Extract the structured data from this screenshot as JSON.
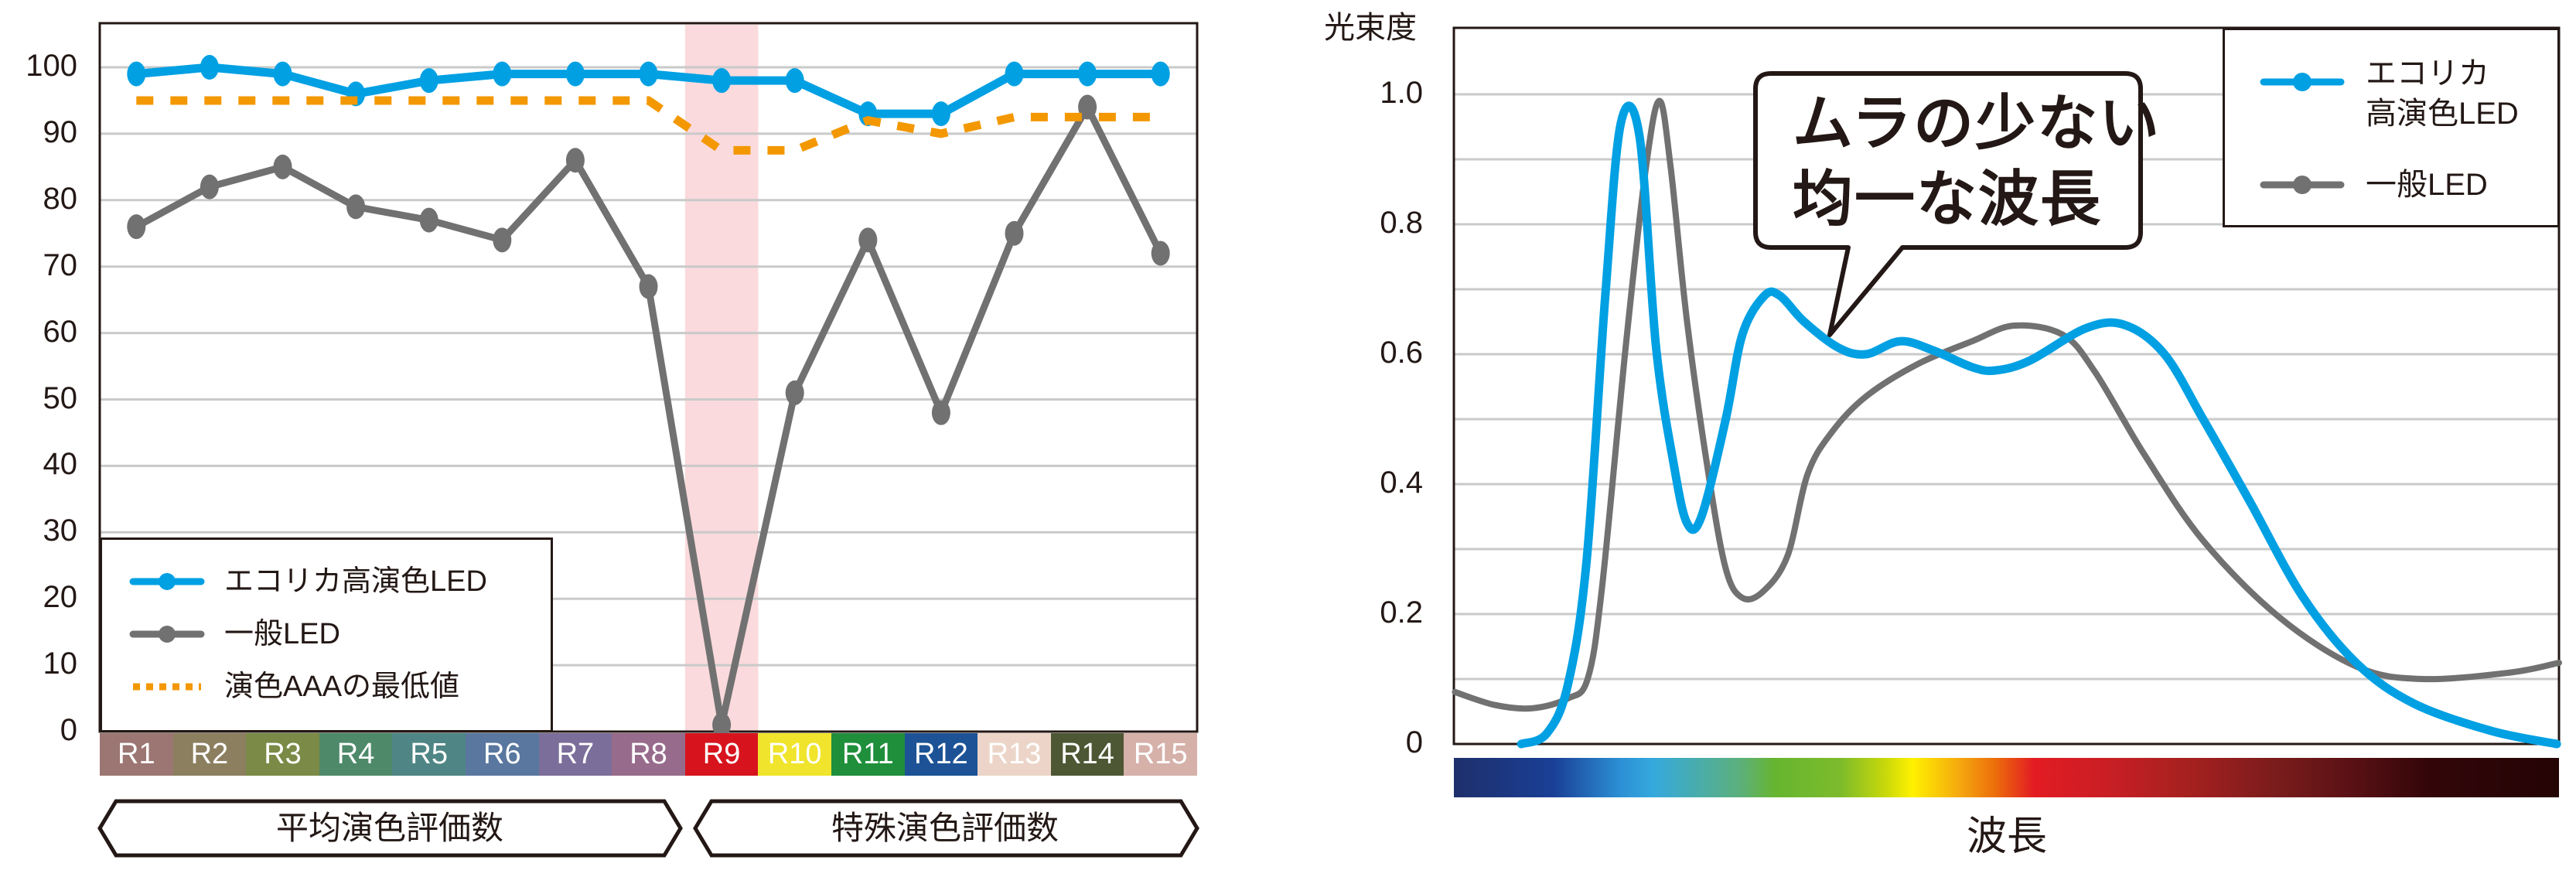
{
  "left_chart": {
    "y_ticks": [
      "100",
      "90",
      "80",
      "70",
      "60",
      "50",
      "40",
      "30",
      "20",
      "10",
      "0"
    ],
    "categories": [
      "R1",
      "R2",
      "R3",
      "R4",
      "R5",
      "R6",
      "R7",
      "R8",
      "R9",
      "R10",
      "R11",
      "R12",
      "R13",
      "R14",
      "R15"
    ],
    "category_colors": [
      "#9b7672",
      "#8c7f60",
      "#7b8a46",
      "#4e8a6a",
      "#4f8585",
      "#59779f",
      "#7c6e9a",
      "#976b8c",
      "#d7141d",
      "#f0e42c",
      "#1f8f3c",
      "#1d5396",
      "#ecd5c8",
      "#4d5734",
      "#d5b1aa"
    ],
    "category_text_colors": [
      "#ffffff",
      "#ffffff",
      "#ffffff",
      "#ffffff",
      "#ffffff",
      "#ffffff",
      "#ffffff",
      "#ffffff",
      "#ffffff",
      "#ffffff",
      "#ffffff",
      "#ffffff",
      "#ffffff",
      "#ffffff",
      "#ffffff"
    ],
    "highlight_category": "R9",
    "legend": {
      "items": [
        {
          "label": "エコリカ高演色LED",
          "color": "#00a0e3",
          "style": "line-marker"
        },
        {
          "label": "一般LED",
          "color": "#727171",
          "style": "line-marker"
        },
        {
          "label": "演色AAAの最低値",
          "color": "#f39800",
          "style": "dotted"
        }
      ]
    },
    "groups": [
      {
        "label": "平均演色評価数",
        "range": [
          "R1",
          "R8"
        ]
      },
      {
        "label": "特殊演色評価数",
        "range": [
          "R9",
          "R15"
        ]
      }
    ]
  },
  "right_chart": {
    "y_axis_title": "光束度",
    "y_ticks": [
      "1.0",
      "0.8",
      "0.6",
      "0.4",
      "0.2",
      "0"
    ],
    "x_axis_title": "波長",
    "callout": {
      "text": "ムラの少ない\n均一な波長"
    },
    "legend": {
      "items": [
        {
          "label": "エコリカ\n高演色LED",
          "color": "#00a0e3"
        },
        {
          "label": "一般LED",
          "color": "#727171"
        }
      ]
    },
    "spectrum_stops": [
      [
        "0%",
        "#1e2f6b"
      ],
      [
        "9%",
        "#1a3f96"
      ],
      [
        "15%",
        "#2b8fd4"
      ],
      [
        "18%",
        "#35a9de"
      ],
      [
        "26%",
        "#5cb07a"
      ],
      [
        "29%",
        "#66b530"
      ],
      [
        "35%",
        "#7dbb2b"
      ],
      [
        "39%",
        "#c7d80a"
      ],
      [
        "41.5%",
        "#fff100"
      ],
      [
        "46%",
        "#f4a40f"
      ],
      [
        "49%",
        "#ec6d0a"
      ],
      [
        "52.5%",
        "#e31b23"
      ],
      [
        "60%",
        "#c51f24"
      ],
      [
        "67%",
        "#a3201f"
      ],
      [
        "74%",
        "#7c1c1c"
      ],
      [
        "82%",
        "#561014"
      ],
      [
        "88%",
        "#330609"
      ],
      [
        "100%",
        "#240405"
      ]
    ]
  },
  "chart_data": [
    {
      "type": "line",
      "title": "",
      "xlabel": "",
      "ylabel": "",
      "categories": [
        "R1",
        "R2",
        "R3",
        "R4",
        "R5",
        "R6",
        "R7",
        "R8",
        "R9",
        "R10",
        "R11",
        "R12",
        "R13",
        "R14",
        "R15"
      ],
      "category_groups": [
        {
          "label": "平均演色評価数",
          "categories": [
            "R1",
            "R2",
            "R3",
            "R4",
            "R5",
            "R6",
            "R7",
            "R8"
          ]
        },
        {
          "label": "特殊演色評価数",
          "categories": [
            "R9",
            "R10",
            "R11",
            "R12",
            "R13",
            "R14",
            "R15"
          ]
        }
      ],
      "series": [
        {
          "name": "エコリカ高演色LED",
          "color": "#00a0e3",
          "values": [
            99,
            100,
            99,
            96,
            98,
            99,
            99,
            99,
            98,
            98,
            93,
            93,
            99,
            99,
            99
          ]
        },
        {
          "name": "一般LED",
          "color": "#727171",
          "values": [
            76,
            82,
            85,
            79,
            77,
            74,
            86,
            67,
            1,
            51,
            74,
            48,
            75,
            94,
            72
          ]
        },
        {
          "name": "演色AAAの最低値",
          "color": "#f39800",
          "style": "dotted",
          "values": [
            95,
            95,
            95,
            95,
            95,
            95,
            95,
            95,
            87.5,
            87.5,
            92,
            90,
            92.5,
            92.5,
            92.5
          ]
        }
      ],
      "ylim": [
        0,
        100
      ],
      "yticks": [
        0,
        10,
        20,
        30,
        40,
        50,
        60,
        70,
        80,
        90,
        100
      ],
      "grid": true,
      "highlight": "R9",
      "legend_position": "lower-left"
    },
    {
      "type": "line",
      "title": "",
      "xlabel": "波長",
      "ylabel": "光束度",
      "annotation": "ムラの少ない均一な波長",
      "x_range": [
        0,
        1
      ],
      "series": [
        {
          "name": "エコリカ高演色LED",
          "color": "#00a0e3",
          "x": [
            0.061,
            0.084,
            0.103,
            0.12,
            0.137,
            0.151,
            0.168,
            0.183,
            0.199,
            0.211,
            0.224,
            0.246,
            0.261,
            0.281,
            0.295,
            0.317,
            0.348,
            0.373,
            0.404,
            0.435,
            0.469,
            0.49,
            0.521,
            0.572,
            0.607,
            0.643,
            0.678,
            0.72,
            0.768,
            0.817,
            0.869,
            0.939,
            0.998
          ],
          "y": [
            0,
            0.016,
            0.09,
            0.28,
            0.69,
            0.955,
            0.935,
            0.61,
            0.43,
            0.34,
            0.35,
            0.5,
            0.63,
            0.69,
            0.69,
            0.65,
            0.61,
            0.6,
            0.62,
            0.605,
            0.58,
            0.575,
            0.59,
            0.64,
            0.645,
            0.6,
            0.5,
            0.374,
            0.227,
            0.124,
            0.062,
            0.02,
            0
          ]
        },
        {
          "name": "一般LED",
          "color": "#727171",
          "x": [
            0.001,
            0.037,
            0.071,
            0.103,
            0.121,
            0.134,
            0.156,
            0.174,
            0.186,
            0.196,
            0.211,
            0.23,
            0.246,
            0.261,
            0.28,
            0.302,
            0.32,
            0.342,
            0.373,
            0.42,
            0.469,
            0.507,
            0.551,
            0.58,
            0.625,
            0.678,
            0.747,
            0.817,
            0.876,
            0.956,
            1.0
          ],
          "y": [
            0.08,
            0.06,
            0.055,
            0.07,
            0.1,
            0.24,
            0.62,
            0.89,
            0.99,
            0.89,
            0.65,
            0.42,
            0.27,
            0.225,
            0.235,
            0.29,
            0.415,
            0.48,
            0.535,
            0.585,
            0.62,
            0.644,
            0.63,
            0.573,
            0.445,
            0.313,
            0.195,
            0.119,
            0.1,
            0.11,
            0.125
          ]
        }
      ],
      "ylim": [
        0,
        1.0
      ],
      "yticks": [
        0,
        0.2,
        0.4,
        0.6,
        0.8,
        1.0
      ],
      "grid": true,
      "grid_step": 0.1,
      "legend_position": "upper-right"
    }
  ]
}
